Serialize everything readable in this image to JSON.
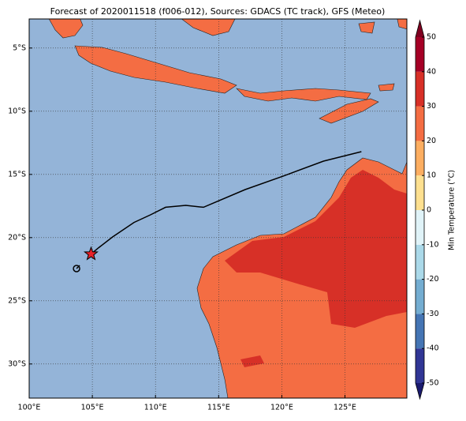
{
  "map": {
    "title": "Forecast of 2020011518 (f006-012), Sources: GDACS (TC track), GFS (Meteo)",
    "xlim": [
      100,
      129.9
    ],
    "ylim": [
      -32.7,
      -2.7
    ],
    "xticks": [
      {
        "value": 100,
        "label": "100°E"
      },
      {
        "value": 105,
        "label": "105°E"
      },
      {
        "value": 110,
        "label": "110°E"
      },
      {
        "value": 115,
        "label": "115°E"
      },
      {
        "value": 120,
        "label": "120°E"
      },
      {
        "value": 125,
        "label": "125°E"
      }
    ],
    "yticks": [
      {
        "value": -5,
        "label": "5°S"
      },
      {
        "value": -10,
        "label": "10°S"
      },
      {
        "value": -15,
        "label": "15°S"
      },
      {
        "value": -20,
        "label": "20°S"
      },
      {
        "value": -25,
        "label": "25°S"
      },
      {
        "value": -30,
        "label": "30°S"
      }
    ],
    "grid": true,
    "ocean_color": "#94b4d8",
    "track": {
      "color": "#000000",
      "marker_color": "#e8222a",
      "x": [
        104.9,
        105.5,
        106.6,
        108.3,
        109.6,
        110.8,
        112.4,
        113.8,
        117.1,
        120.2,
        123.3,
        126.3
      ],
      "y": [
        -21.3,
        -20.8,
        -19.95,
        -18.8,
        -18.2,
        -17.6,
        -17.45,
        -17.6,
        -16.2,
        -15.1,
        -13.95,
        -13.2
      ],
      "start": [
        103.75,
        -22.45
      ]
    },
    "colorbar": {
      "label": "Min Temperature (°C)",
      "ticks": [
        -50,
        -40,
        -30,
        -20,
        -10,
        0,
        10,
        20,
        30,
        40,
        50
      ],
      "colors": [
        "#313695",
        "#4575b4",
        "#74add1",
        "#abd9e9",
        "#e0f3f8",
        "#fee090",
        "#fdae61",
        "#f46d43",
        "#d73027",
        "#a50026"
      ],
      "under_color": "#1a1a6e",
      "over_color": "#7f0020"
    }
  }
}
